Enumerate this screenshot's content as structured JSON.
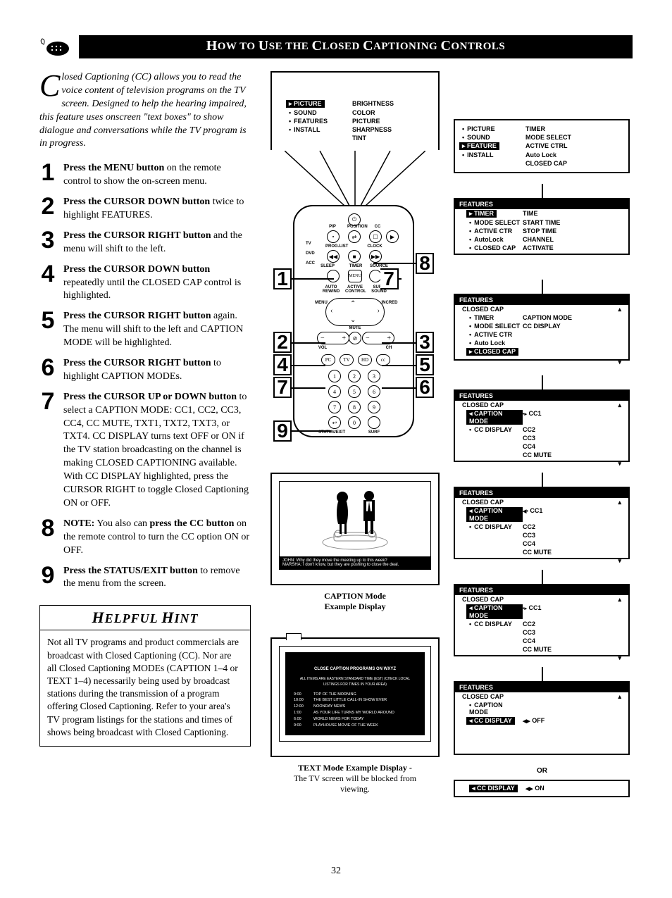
{
  "page": {
    "title_parts": [
      "H",
      "OW TO ",
      "U",
      "SE THE ",
      "C",
      "LOSED ",
      "C",
      "APTIONING ",
      "C",
      "ONTROLS"
    ],
    "page_number": "32"
  },
  "intro": {
    "dropcap": "C",
    "text": "losed Captioning (CC) allows you to read the voice content of television programs on the TV screen.  Designed to help the hearing impaired, this feature uses onscreen \"text boxes\" to show dialogue and conversations while the TV program is in progress."
  },
  "steps": [
    {
      "n": "1",
      "bold": "Press the MENU button",
      "rest": " on the remote control to show the on-screen menu."
    },
    {
      "n": "2",
      "bold": "Press the CURSOR DOWN button",
      "rest": " twice to highlight FEATURES."
    },
    {
      "n": "3",
      "bold": "Press the CURSOR RIGHT button",
      "rest": " and the menu will shift to the left."
    },
    {
      "n": "4",
      "bold": "Press the CURSOR DOWN button",
      "rest": " repeatedly until the CLOSED CAP control is highlighted."
    },
    {
      "n": "5",
      "bold": "Press the CURSOR RIGHT button",
      "rest": " again. The menu will shift to the left and CAPTION MODE will be highlighted."
    },
    {
      "n": "6",
      "bold": "Press the CURSOR RIGHT button",
      "rest": " to highlight CAPTION MODEs."
    },
    {
      "n": "7",
      "bold": "Press the CURSOR UP or DOWN button",
      "rest": " to select a CAPTION MODE: CC1, CC2, CC3, CC4, CC MUTE, TXT1, TXT2, TXT3, or TXT4.  CC DISPLAY turns text OFF or ON if the TV station broadcasting on the channel is making CLOSED CAPTIONING available. With CC DISPLAY highlighted, press the CURSOR RIGHT to toggle Closed Captioning ON or OFF."
    },
    {
      "n": "8",
      "bold": "NOTE:",
      "rest": " You also can ",
      "bold2": "press the CC button",
      "rest2": " on the remote control to turn the CC option ON or OFF."
    },
    {
      "n": "9",
      "bold": "Press the STATUS/EXIT button",
      "rest": " to remove the menu from the screen."
    }
  ],
  "hint": {
    "title": "HELPFUL HINT",
    "body": "Not all TV programs and product commercials are broadcast with Closed Captioning (CC).  Nor are all Closed Captioning MODEs (CAPTION 1–4 or TEXT 1–4) necessarily being used by broadcast stations during the transmission of a program offering Closed Captioning.  Refer to your area's TV program listings for the stations and times of shows being broadcast with Closed Captioning."
  },
  "menus": {
    "m1": {
      "left": [
        "PICTURE",
        "SOUND",
        "FEATURES",
        "INSTALL"
      ],
      "right": [
        "BRIGHTNESS",
        "COLOR",
        "PICTURE",
        "SHARPNESS",
        "TINT"
      ],
      "hl_idx": 0
    },
    "m2": {
      "left": [
        "PICTURE",
        "SOUND",
        "FEATURE",
        "INSTALL"
      ],
      "right": [
        "TIMER",
        "MODE SELECT",
        "ACTIVE CTRL",
        "Auto Lock",
        "CLOSED CAP"
      ],
      "hl_idx": 2
    },
    "m3": {
      "hdr": "FEATURES",
      "left": [
        "TIMER",
        "MODE SELECT",
        "ACTIVE CTR",
        "AutoLock",
        "CLOSED CAP",
        ""
      ],
      "right": [
        "TIME",
        "START TIME",
        "STOP TIME",
        "CHANNEL",
        "ACTIVATE"
      ],
      "hl_idx": 0
    },
    "m4": {
      "hdr": "FEATURES",
      "sub": "CLOSED CAP",
      "left": [
        "TIMER",
        "MODE SELECT",
        "ACTIVE CTR",
        "Auto Lock",
        "CLOSED CAP",
        ""
      ],
      "right": [
        "CAPTION MODE",
        "CC DISPLAY"
      ],
      "hl_idx": 4
    },
    "m5": {
      "hdr": "FEATURES",
      "sub": "CLOSED CAP",
      "left": [
        "CAPTION MODE",
        "CC DISPLAY"
      ],
      "right": [
        "CC1",
        "CC2",
        "CC3",
        "CC4",
        "CC MUTE"
      ],
      "hl_idx_l": 0
    },
    "m6": {
      "hdr": "FEATURES",
      "sub": "CLOSED CAP",
      "left": [
        "CAPTION MODE",
        "CC DISPLAY"
      ],
      "right": [
        "CC1",
        "CC2",
        "CC3",
        "CC4",
        "CC MUTE"
      ],
      "hl_idx_l": 0
    },
    "m7": {
      "hdr": "FEATURES",
      "sub": "CLOSED CAP",
      "left": [
        "CAPTION MODE",
        "CC DISPLAY"
      ],
      "right": [
        "CC1",
        "CC2",
        "CC3",
        "CC4",
        "CC MUTE"
      ],
      "hl_idx_l": 0
    },
    "m8": {
      "hdr": "FEATURES",
      "sub": "CLOSED CAP",
      "left": [
        "CAPTION MODE",
        "CC DISPLAY"
      ],
      "right": [
        "OFF"
      ],
      "hl_idx_l": 1
    },
    "m9": {
      "left": [
        "CC DISPLAY"
      ],
      "right": [
        "ON"
      ]
    }
  },
  "captions": {
    "caption_mode": "CAPTION Mode Example Display",
    "text_mode": "TEXT Mode Example Display -",
    "text_mode_sub": "The TV screen will be blocked from viewing."
  },
  "or_label": "OR",
  "tv_caption_dialogue": {
    "l1": "JOHN: Why did they move the meeting up to this week?",
    "l2": "MARSHA: I don't know, but they are pushing to close the deal."
  },
  "text_screen": {
    "hdr": "CLOSE CAPTION PROGRAMS ON WXYZ",
    "sub": "ALL ITEMS ARE EASTERN STANDARD TIME (EST) (CHECK LOCAL LISTINGS FOR TIMES IN YOUR AREA)",
    "rows": [
      {
        "t": "9:00",
        "p": "TOP OF THE MORNING"
      },
      {
        "t": "10:00",
        "p": "THE BEST LITTLE CALL-IN SHOW EVER"
      },
      {
        "t": "12:00",
        "p": "NOONDAY NEWS"
      },
      {
        "t": "1:00",
        "p": "AS YOUR LIFE TURNS MY WORLD AROUND"
      },
      {
        "t": "6:00",
        "p": "WORLD NEWS FOR TODAY"
      },
      {
        "t": "9:00",
        "p": "PLAYHOUSE MOVIE OF THE WEEK"
      }
    ]
  },
  "remote_labels": {
    "top": [
      "PIP",
      "POSITION",
      "CC"
    ],
    "row2": [
      "PROG.LIST",
      "CLOCK"
    ],
    "side": [
      "TV",
      "DVD",
      "ACC"
    ],
    "mid": [
      "SLEEP",
      "TIMER",
      "SOURCE"
    ],
    "auto": [
      "AUTO REWIND",
      "ACTIVE CONTROL",
      "SURR SOUND"
    ],
    "menu": [
      "MENU",
      "INCRED"
    ],
    "vol": [
      "VOL",
      "MUTE",
      "CH"
    ],
    "pc": [
      "PC",
      "TV",
      "HD"
    ],
    "bottom": [
      "STATUS/EXIT",
      "SURF"
    ]
  },
  "callouts": [
    "1",
    "2",
    "3",
    "4",
    "5",
    "6",
    "7",
    "8",
    "9"
  ]
}
